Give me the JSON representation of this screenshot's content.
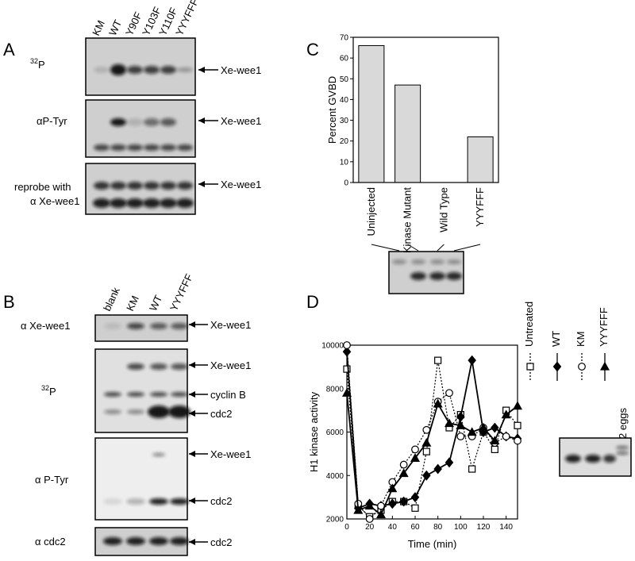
{
  "panel_a": {
    "letter": "A",
    "lanes": [
      "KM",
      "WT",
      "Y90F",
      "Y103F",
      "Y110F",
      "YYYFFF"
    ],
    "blot_32p": {
      "sup": "32",
      "label": "P",
      "arrow": "Xe-wee1"
    },
    "blot_ptyr": {
      "label": "αP-Tyr",
      "arrow": "Xe-wee1"
    },
    "blot_reprobe": {
      "label": [
        "reprobe with",
        "α Xe-wee1"
      ],
      "arrow": "Xe-wee1"
    }
  },
  "panel_b": {
    "letter": "B",
    "lanes": [
      "blank",
      "KM",
      "WT",
      "YYYFFF"
    ],
    "blot_wee1": {
      "label": "α Xe-wee1",
      "arrows": [
        "Xe-wee1"
      ]
    },
    "blot_32p": {
      "sup": "32",
      "label": "P",
      "arrows": [
        "Xe-wee1",
        "cyclin B",
        "cdc2"
      ]
    },
    "blot_ptyr": {
      "label": "α P-Tyr",
      "arrows": [
        "Xe-wee1",
        "cdc2"
      ]
    },
    "blot_cdc2": {
      "label": "α cdc2",
      "arrows": [
        "cdc2"
      ]
    }
  },
  "panel_c": {
    "letter": "C"
  },
  "panel_d": {
    "letter": "D",
    "gel_label": "2 eggs"
  },
  "chart_data": [
    {
      "type": "bar",
      "y_label": "Percent GVBD",
      "categories": [
        "Uninjected",
        "Kinase Mutant",
        "Wild Type",
        "YYYFFF"
      ],
      "values": [
        66,
        47,
        0,
        22
      ],
      "color": "#d9d9d9",
      "ylim": [
        0,
        70
      ],
      "yticks": [
        0,
        10,
        20,
        30,
        40,
        50,
        60,
        70
      ]
    },
    {
      "type": "line",
      "y_label": "H1 kinase activity",
      "x_label": "Time (min)",
      "x": [
        0,
        10,
        20,
        30,
        40,
        50,
        60,
        70,
        80,
        90,
        100,
        110,
        120,
        130,
        140,
        150
      ],
      "xlim": [
        0,
        150
      ],
      "xticks": [
        0,
        20,
        40,
        60,
        80,
        100,
        120,
        140
      ],
      "ylim": [
        2000,
        10000
      ],
      "yticks": [
        2000,
        4000,
        6000,
        8000,
        10000
      ],
      "series": [
        {
          "name": "Untreated",
          "color": "#000000",
          "style": "dotted",
          "marker": "square",
          "marker_fill": "open",
          "values": [
            8900,
            2600,
            2100,
            2400,
            2800,
            2800,
            2500,
            5100,
            9300,
            6200,
            6800,
            4300,
            6000,
            5200,
            7000,
            6300
          ]
        },
        {
          "name": "WT",
          "color": "#000000",
          "style": "solid",
          "marker": "diamond",
          "marker_fill": "filled",
          "values": [
            9700,
            2500,
            2700,
            2600,
            2700,
            2800,
            3000,
            4000,
            4300,
            4600,
            6700,
            9300,
            6000,
            6200,
            5800,
            5700
          ]
        },
        {
          "name": "KM",
          "color": "#000000",
          "style": "dotted",
          "marker": "circle",
          "marker_fill": "open",
          "values": [
            10000,
            2700,
            2000,
            2600,
            3700,
            4500,
            5200,
            6100,
            7400,
            7800,
            5800,
            5800,
            6200,
            5500,
            5800,
            5600
          ]
        },
        {
          "name": "YYYFFF",
          "color": "#000000",
          "style": "solid",
          "marker": "triangle",
          "marker_fill": "filled",
          "values": [
            7800,
            2400,
            2600,
            2200,
            3400,
            4100,
            4800,
            5500,
            7300,
            6400,
            6300,
            6000,
            6200,
            5600,
            6800,
            7200
          ]
        }
      ]
    }
  ]
}
